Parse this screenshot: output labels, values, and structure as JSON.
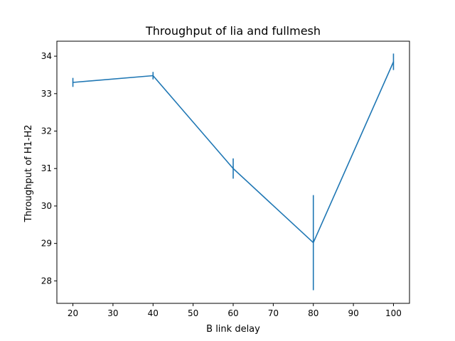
{
  "chart_data": {
    "type": "line",
    "title": "Throughput of lia and fullmesh",
    "xlabel": "B link delay",
    "ylabel": "Throughput of H1-H2",
    "xlim": [
      16,
      104
    ],
    "ylim": [
      27.4,
      34.4
    ],
    "xticks": [
      20,
      30,
      40,
      50,
      60,
      70,
      80,
      90,
      100
    ],
    "yticks": [
      28,
      29,
      30,
      31,
      32,
      33,
      34
    ],
    "grid": false,
    "series": [
      {
        "color": "#1f77b4",
        "x": [
          20,
          40,
          60,
          80,
          100
        ],
        "y": [
          33.3,
          33.48,
          31.0,
          29.02,
          33.85
        ],
        "yerr": [
          0.12,
          0.1,
          0.27,
          1.27,
          0.22
        ]
      }
    ]
  }
}
